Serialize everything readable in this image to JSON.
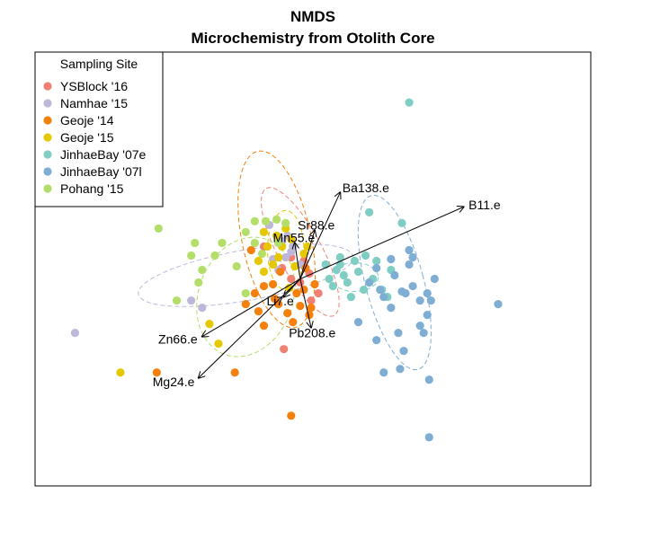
{
  "chart_data": {
    "type": "scatter",
    "title": "NMDS",
    "subtitle": "Microchemistry from Otolith Core",
    "xlim": [
      -1.46,
      1.6
    ],
    "ylim": [
      -1.15,
      1.26
    ],
    "axes_visible": false,
    "box": true,
    "legend": {
      "title": "Sampling Site",
      "placement": "top-left"
    },
    "series": [
      {
        "name": "YSBlock '16",
        "color": "#F08072",
        "points": [
          [
            0.02,
            0.1
          ],
          [
            0.05,
            0.03
          ],
          [
            -0.05,
            0.12
          ],
          [
            0.1,
            -0.08
          ],
          [
            0.0,
            -0.02
          ],
          [
            -0.1,
            0.06
          ],
          [
            -0.09,
            -0.39
          ],
          [
            -0.2,
            0.18
          ],
          [
            0.06,
            -0.12
          ],
          [
            -0.05,
            0.0
          ]
        ]
      },
      {
        "name": "Namhae '15",
        "color": "#BDB8DA",
        "points": [
          [
            -1.24,
            -0.3
          ],
          [
            -0.6,
            -0.12
          ],
          [
            -0.54,
            -0.16
          ],
          [
            -0.17,
            0.3
          ],
          [
            -0.15,
            0.11
          ],
          [
            -0.1,
            0.21
          ],
          [
            -0.07,
            0.24
          ],
          [
            -0.05,
            0.15
          ],
          [
            -0.08,
            0.12
          ],
          [
            0.0,
            0.08
          ],
          [
            -0.12,
            0.05
          ],
          [
            -0.04,
            0.18
          ]
        ]
      },
      {
        "name": "Geoje '14",
        "color": "#F4800D",
        "points": [
          [
            -0.79,
            -0.52
          ],
          [
            -0.36,
            -0.52
          ],
          [
            -0.05,
            -0.76
          ],
          [
            -0.2,
            -0.26
          ],
          [
            -0.12,
            -0.14
          ],
          [
            -0.07,
            -0.19
          ],
          [
            -0.11,
            0.04
          ],
          [
            -0.15,
            -0.03
          ],
          [
            -0.2,
            -0.04
          ],
          [
            -0.02,
            -0.08
          ],
          [
            0.0,
            -0.15
          ],
          [
            0.05,
            -0.2
          ],
          [
            0.08,
            -0.03
          ],
          [
            0.03,
            0.06
          ],
          [
            -0.25,
            -0.08
          ],
          [
            -0.3,
            -0.14
          ],
          [
            -0.27,
            0.16
          ],
          [
            -0.23,
            -0.18
          ],
          [
            -0.04,
            -0.24
          ],
          [
            0.06,
            -0.16
          ],
          [
            -0.14,
            -0.11
          ],
          [
            0.02,
            -0.06
          ]
        ]
      },
      {
        "name": "Geoje '15",
        "color": "#E5C800",
        "points": [
          [
            -0.99,
            -0.52
          ],
          [
            -0.5,
            -0.25
          ],
          [
            -0.45,
            -0.36
          ],
          [
            -0.2,
            0.26
          ],
          [
            -0.18,
            0.18
          ],
          [
            -0.12,
            0.12
          ],
          [
            -0.08,
            0.28
          ],
          [
            -0.1,
            0.18
          ],
          [
            -0.03,
            0.07
          ],
          [
            0.02,
            0.14
          ],
          [
            -0.15,
            0.08
          ],
          [
            -0.05,
            0.22
          ],
          [
            -0.13,
            0.24
          ],
          [
            -0.23,
            0.1
          ],
          [
            0.04,
            0.18
          ],
          [
            -0.2,
            0.04
          ],
          [
            -0.06,
            -0.05
          ]
        ]
      },
      {
        "name": "JinhaeBay '07e",
        "color": "#7FCDC3",
        "points": [
          [
            0.6,
            0.98
          ],
          [
            0.56,
            0.31
          ],
          [
            0.38,
            0.37
          ],
          [
            0.16,
            0.0
          ],
          [
            0.2,
            0.05
          ],
          [
            0.22,
            0.08
          ],
          [
            0.26,
            -0.02
          ],
          [
            0.3,
            0.1
          ],
          [
            0.32,
            0.04
          ],
          [
            0.28,
            -0.1
          ],
          [
            0.24,
            0.02
          ],
          [
            0.35,
            -0.06
          ],
          [
            0.4,
            0.0
          ],
          [
            0.45,
            -0.06
          ],
          [
            0.5,
            0.05
          ],
          [
            0.42,
            0.1
          ],
          [
            0.36,
            0.13
          ],
          [
            0.14,
            0.08
          ],
          [
            0.18,
            -0.04
          ],
          [
            0.48,
            -0.1
          ],
          [
            0.22,
            0.12
          ]
        ]
      },
      {
        "name": "JinhaeBay '07l",
        "color": "#7FAED4",
        "points": [
          [
            1.09,
            -0.14
          ],
          [
            0.71,
            -0.56
          ],
          [
            0.57,
            -0.4
          ],
          [
            0.55,
            -0.5
          ],
          [
            0.42,
            -0.34
          ],
          [
            0.46,
            -0.52
          ],
          [
            0.5,
            -0.16
          ],
          [
            0.58,
            -0.08
          ],
          [
            0.62,
            -0.04
          ],
          [
            0.66,
            -0.12
          ],
          [
            0.7,
            -0.2
          ],
          [
            0.72,
            -0.12
          ],
          [
            0.74,
            0.0
          ],
          [
            0.6,
            0.08
          ],
          [
            0.52,
            0.02
          ],
          [
            0.62,
            0.12
          ],
          [
            0.54,
            -0.3
          ],
          [
            0.66,
            -0.26
          ],
          [
            0.68,
            -0.3
          ],
          [
            0.7,
            -0.08
          ],
          [
            0.32,
            -0.24
          ],
          [
            0.46,
            -0.1
          ],
          [
            0.44,
            -0.06
          ],
          [
            0.38,
            -0.02
          ],
          [
            0.42,
            0.06
          ],
          [
            0.56,
            -0.07
          ],
          [
            0.5,
            0.11
          ],
          [
            0.71,
            -0.88
          ],
          [
            0.6,
            0.16
          ]
        ]
      },
      {
        "name": "Pohang '15",
        "color": "#B3DE69",
        "points": [
          [
            -0.78,
            0.28
          ],
          [
            -0.58,
            0.2
          ],
          [
            -0.6,
            0.13
          ],
          [
            -0.54,
            0.05
          ],
          [
            -0.43,
            0.2
          ],
          [
            -0.47,
            0.13
          ],
          [
            -0.35,
            0.07
          ],
          [
            -0.3,
            -0.08
          ],
          [
            -0.25,
            0.2
          ],
          [
            -0.21,
            0.14
          ],
          [
            -0.19,
            0.32
          ],
          [
            -0.13,
            0.33
          ],
          [
            -0.08,
            0.31
          ],
          [
            -0.68,
            -0.12
          ],
          [
            -0.56,
            -0.02
          ],
          [
            -0.25,
            0.32
          ],
          [
            -0.3,
            0.26
          ],
          [
            -0.12,
            0.2
          ]
        ]
      }
    ],
    "ellipses": [
      {
        "series": "YSBlock '16",
        "cx": 0.0,
        "cy": 0.15,
        "rx": 0.12,
        "ry": 0.4,
        "angle": -28
      },
      {
        "series": "Namhae '15",
        "cx": -0.3,
        "cy": 0.02,
        "rx": 0.6,
        "ry": 0.14,
        "angle": -10
      },
      {
        "series": "Geoje '14",
        "cx": -0.13,
        "cy": 0.22,
        "rx": 0.19,
        "ry": 0.5,
        "angle": -12
      },
      {
        "series": "Geoje '15",
        "cx": -0.08,
        "cy": 0.16,
        "rx": 0.1,
        "ry": 0.22,
        "angle": 0
      },
      {
        "series": "JinhaeBay '07e",
        "cx": 0.3,
        "cy": 0.01,
        "rx": 0.13,
        "ry": 0.08,
        "angle": 0
      },
      {
        "series": "JinhaeBay '07l",
        "cx": 0.52,
        "cy": -0.02,
        "rx": 0.16,
        "ry": 0.5,
        "angle": -15
      },
      {
        "series": "Pohang '15",
        "cx": -0.3,
        "cy": -0.1,
        "rx": 0.26,
        "ry": 0.34,
        "angle": 20
      }
    ],
    "vectors": [
      {
        "label": "Ba138.e",
        "x": 0.22,
        "y": 0.48
      },
      {
        "label": "B11.e",
        "x": 0.9,
        "y": 0.4
      },
      {
        "label": "Sr88.e",
        "x": 0.08,
        "y": 0.27
      },
      {
        "label": "Mn55.e",
        "x": -0.03,
        "y": 0.2
      },
      {
        "label": "Li7.e",
        "x": -0.09,
        "y": -0.1
      },
      {
        "label": "Pb208.e",
        "x": 0.06,
        "y": -0.27
      },
      {
        "label": "Zn66.e",
        "x": -0.54,
        "y": -0.32
      },
      {
        "label": "Mg24.e",
        "x": -0.56,
        "y": -0.55
      }
    ],
    "vector_origin": [
      0.0,
      0.0
    ]
  }
}
